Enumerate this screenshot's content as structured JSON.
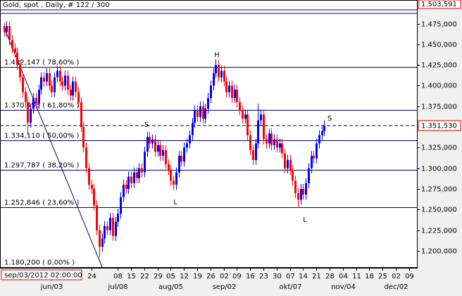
{
  "chart_data": {
    "type": "candlestick",
    "title": "Gold, spot , Daily, # 122 / 300",
    "up_color": "#0000ff",
    "down_color": "#ff0000",
    "level_color": "#000080",
    "ylim": [
      1.1795,
      1.503591
    ],
    "xlim": [
      -1.5,
      156
    ],
    "top_label": {
      "value": 1.503591,
      "label": "1.503,591"
    },
    "last_price": {
      "value": 1.35153,
      "label": "1.351,530"
    },
    "cursor_time": "sep/03/2012 02:00:00",
    "yticks": [
      {
        "value": 1.2,
        "label": "1.200,000"
      },
      {
        "value": 1.225,
        "label": "1.225,000"
      },
      {
        "value": 1.25,
        "label": "1.250,000"
      },
      {
        "value": 1.275,
        "label": "1.275,000"
      },
      {
        "value": 1.3,
        "label": "1.300,000"
      },
      {
        "value": 1.325,
        "label": "1.325,000"
      },
      {
        "value": 1.35,
        "label": "1.350,000"
      },
      {
        "value": 1.375,
        "label": "1.375,000"
      },
      {
        "value": 1.4,
        "label": "1.400,000"
      },
      {
        "value": 1.425,
        "label": "1.425,000"
      },
      {
        "value": 1.45,
        "label": "1.450,000"
      },
      {
        "value": 1.475,
        "label": "1.475,000"
      }
    ],
    "xticks": [
      {
        "value": 33,
        "label": "24"
      },
      {
        "value": 43,
        "label": "08"
      },
      {
        "value": 48,
        "label": "15"
      },
      {
        "value": 53,
        "label": "22"
      },
      {
        "value": 58,
        "label": "29"
      },
      {
        "value": 63,
        "label": "05"
      },
      {
        "value": 68,
        "label": "12"
      },
      {
        "value": 73,
        "label": "19"
      },
      {
        "value": 78,
        "label": "26"
      },
      {
        "value": 83,
        "label": "02"
      },
      {
        "value": 88,
        "label": "09"
      },
      {
        "value": 93,
        "label": "16"
      },
      {
        "value": 98,
        "label": "23"
      },
      {
        "value": 103,
        "label": "30"
      },
      {
        "value": 108,
        "label": "07"
      },
      {
        "value": 113,
        "label": "14"
      },
      {
        "value": 118,
        "label": "21"
      },
      {
        "value": 123,
        "label": "28"
      },
      {
        "value": 128,
        "label": "04"
      },
      {
        "value": 133,
        "label": "11"
      },
      {
        "value": 138,
        "label": "18"
      },
      {
        "value": 143,
        "label": "25"
      },
      {
        "value": 148,
        "label": "02"
      },
      {
        "value": 153,
        "label": "09"
      }
    ],
    "month_ticks": [
      {
        "value": 18,
        "label": "jun/03"
      },
      {
        "value": 43,
        "label": "jul/08"
      },
      {
        "value": 63,
        "label": "aug/05"
      },
      {
        "value": 83,
        "label": "sep/02"
      },
      {
        "value": 108,
        "label": "okt/07"
      },
      {
        "value": 128,
        "label": "nov/04"
      },
      {
        "value": 148,
        "label": "dec/02"
      }
    ],
    "fib_levels": [
      {
        "value": 1.422147,
        "label": "1.422,147 ( 78,60% )"
      },
      {
        "value": 1.370453,
        "label": "1.370,453 ( 61,80% )"
      },
      {
        "value": 1.33411,
        "label": "1.334,110 ( 50,00% )"
      },
      {
        "value": 1.297787,
        "label": "1.297,787 ( 38,20% )"
      },
      {
        "value": 1.252846,
        "label": "1.252,846 ( 23,60% )"
      },
      {
        "value": 1.1802,
        "label": "1.180,200 ( 0,00% )"
      }
    ],
    "annotations": [
      "S",
      "H",
      "S",
      "L",
      "L"
    ],
    "open": [
      1.47,
      1.465,
      1.472,
      1.455,
      1.445,
      1.44,
      1.425,
      1.41,
      1.392,
      1.38,
      1.355,
      1.372,
      1.385,
      1.378,
      1.395,
      1.41,
      1.405,
      1.415,
      1.4,
      1.392,
      1.41,
      1.418,
      1.405,
      1.4,
      1.412,
      1.395,
      1.388,
      1.405,
      1.392,
      1.38,
      1.35,
      1.325,
      1.3,
      1.28,
      1.275,
      1.255,
      1.225,
      1.205,
      1.215,
      1.23,
      1.225,
      1.24,
      1.218,
      1.235,
      1.245,
      1.265,
      1.28,
      1.275,
      1.29,
      1.282,
      1.295,
      1.288,
      1.3,
      1.295,
      1.32,
      1.338,
      1.33,
      1.335,
      1.32,
      1.328,
      1.315,
      1.322,
      1.305,
      1.298,
      1.285,
      1.28,
      1.295,
      1.315,
      1.308,
      1.325,
      1.33,
      1.34,
      1.355,
      1.37,
      1.362,
      1.375,
      1.36,
      1.372,
      1.385,
      1.4,
      1.415,
      1.425,
      1.41,
      1.418,
      1.405,
      1.392,
      1.4,
      1.385,
      1.395,
      1.38,
      1.37,
      1.36,
      1.365,
      1.34,
      1.322,
      1.31,
      1.33,
      1.358,
      1.365,
      1.335,
      1.33,
      1.342,
      1.328,
      1.335,
      1.325,
      1.33,
      1.318,
      1.3,
      1.31,
      1.298,
      1.285,
      1.27,
      1.262,
      1.275,
      1.268,
      1.282,
      1.3,
      1.315,
      1.312,
      1.33,
      1.34,
      1.345
    ],
    "high": [
      1.476,
      1.478,
      1.478,
      1.461,
      1.451,
      1.446,
      1.431,
      1.416,
      1.398,
      1.386,
      1.378,
      1.391,
      1.391,
      1.401,
      1.416,
      1.416,
      1.421,
      1.421,
      1.406,
      1.416,
      1.424,
      1.424,
      1.411,
      1.418,
      1.418,
      1.401,
      1.411,
      1.411,
      1.398,
      1.386,
      1.356,
      1.331,
      1.306,
      1.286,
      1.281,
      1.261,
      1.231,
      1.221,
      1.236,
      1.236,
      1.246,
      1.246,
      1.241,
      1.251,
      1.271,
      1.286,
      1.286,
      1.296,
      1.296,
      1.301,
      1.301,
      1.306,
      1.306,
      1.326,
      1.344,
      1.344,
      1.341,
      1.341,
      1.334,
      1.334,
      1.328,
      1.328,
      1.311,
      1.304,
      1.291,
      1.301,
      1.321,
      1.321,
      1.331,
      1.336,
      1.346,
      1.361,
      1.376,
      1.376,
      1.381,
      1.381,
      1.378,
      1.391,
      1.406,
      1.421,
      1.432,
      1.431,
      1.424,
      1.424,
      1.411,
      1.406,
      1.406,
      1.401,
      1.401,
      1.386,
      1.376,
      1.371,
      1.371,
      1.346,
      1.328,
      1.336,
      1.378,
      1.371,
      1.371,
      1.341,
      1.348,
      1.348,
      1.341,
      1.341,
      1.336,
      1.336,
      1.324,
      1.316,
      1.316,
      1.304,
      1.291,
      1.276,
      1.281,
      1.281,
      1.288,
      1.306,
      1.321,
      1.321,
      1.336,
      1.346,
      1.351,
      1.358
    ],
    "low": [
      1.459,
      1.459,
      1.449,
      1.439,
      1.434,
      1.419,
      1.404,
      1.386,
      1.374,
      1.34,
      1.349,
      1.366,
      1.372,
      1.372,
      1.389,
      1.399,
      1.399,
      1.394,
      1.386,
      1.386,
      1.404,
      1.399,
      1.394,
      1.394,
      1.389,
      1.382,
      1.382,
      1.386,
      1.374,
      1.344,
      1.319,
      1.294,
      1.274,
      1.269,
      1.249,
      1.219,
      1.192,
      1.199,
      1.209,
      1.219,
      1.219,
      1.212,
      1.212,
      1.229,
      1.239,
      1.259,
      1.269,
      1.269,
      1.276,
      1.276,
      1.282,
      1.282,
      1.289,
      1.289,
      1.314,
      1.324,
      1.324,
      1.314,
      1.314,
      1.309,
      1.309,
      1.299,
      1.292,
      1.279,
      1.274,
      1.274,
      1.289,
      1.302,
      1.302,
      1.319,
      1.324,
      1.334,
      1.349,
      1.356,
      1.356,
      1.354,
      1.354,
      1.366,
      1.379,
      1.394,
      1.409,
      1.404,
      1.404,
      1.399,
      1.386,
      1.386,
      1.379,
      1.379,
      1.374,
      1.364,
      1.354,
      1.354,
      1.334,
      1.316,
      1.304,
      1.304,
      1.324,
      1.352,
      1.329,
      1.324,
      1.324,
      1.322,
      1.322,
      1.319,
      1.319,
      1.312,
      1.294,
      1.294,
      1.292,
      1.279,
      1.264,
      1.252,
      1.256,
      1.262,
      1.262,
      1.276,
      1.294,
      1.306,
      1.306,
      1.324,
      1.334,
      1.339
    ],
    "close": [
      1.465,
      1.472,
      1.455,
      1.445,
      1.44,
      1.425,
      1.41,
      1.392,
      1.38,
      1.355,
      1.372,
      1.385,
      1.378,
      1.395,
      1.41,
      1.405,
      1.415,
      1.4,
      1.392,
      1.41,
      1.418,
      1.405,
      1.4,
      1.412,
      1.395,
      1.388,
      1.405,
      1.392,
      1.38,
      1.35,
      1.325,
      1.3,
      1.28,
      1.275,
      1.255,
      1.225,
      1.205,
      1.215,
      1.23,
      1.225,
      1.24,
      1.218,
      1.235,
      1.245,
      1.265,
      1.28,
      1.275,
      1.29,
      1.282,
      1.295,
      1.288,
      1.3,
      1.295,
      1.32,
      1.338,
      1.33,
      1.335,
      1.32,
      1.328,
      1.315,
      1.322,
      1.305,
      1.298,
      1.285,
      1.28,
      1.295,
      1.315,
      1.308,
      1.325,
      1.33,
      1.34,
      1.355,
      1.37,
      1.362,
      1.375,
      1.36,
      1.372,
      1.385,
      1.4,
      1.415,
      1.425,
      1.41,
      1.418,
      1.405,
      1.392,
      1.4,
      1.385,
      1.395,
      1.38,
      1.37,
      1.36,
      1.365,
      1.34,
      1.322,
      1.31,
      1.33,
      1.358,
      1.365,
      1.335,
      1.33,
      1.342,
      1.328,
      1.335,
      1.325,
      1.33,
      1.318,
      1.3,
      1.31,
      1.298,
      1.285,
      1.27,
      1.262,
      1.275,
      1.268,
      1.282,
      1.3,
      1.315,
      1.312,
      1.33,
      1.34,
      1.345,
      1.35153
    ]
  }
}
